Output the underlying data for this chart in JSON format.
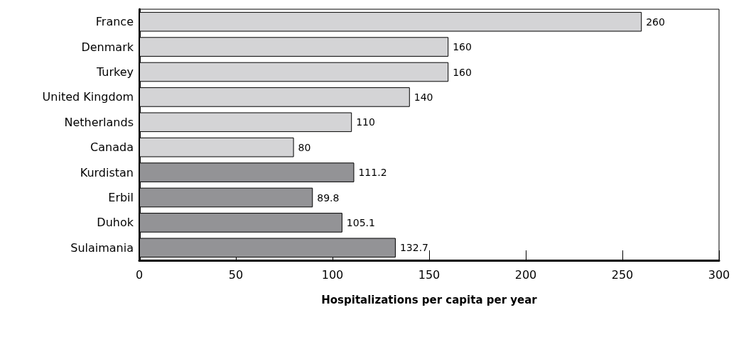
{
  "chart_data": {
    "type": "bar",
    "orientation": "horizontal",
    "xlabel": "Hospitalizations per capita per year",
    "categories": [
      "France",
      "Denmark",
      "Turkey",
      "United Kingdom",
      "Netherlands",
      "Canada",
      "Kurdistan",
      "Erbil",
      "Duhok",
      "Sulaimania"
    ],
    "values": [
      260,
      160,
      160,
      140,
      110,
      80,
      111.2,
      89.8,
      105.1,
      132.7
    ],
    "colors": [
      "#d4d4d6",
      "#d4d4d6",
      "#d4d4d6",
      "#d4d4d6",
      "#d4d4d6",
      "#d4d4d6",
      "#939396",
      "#939396",
      "#939396",
      "#939396"
    ],
    "xlim": [
      0,
      300
    ],
    "xticks": [
      0,
      50,
      100,
      150,
      200,
      250,
      300
    ],
    "data_labels": true,
    "grid": false
  }
}
